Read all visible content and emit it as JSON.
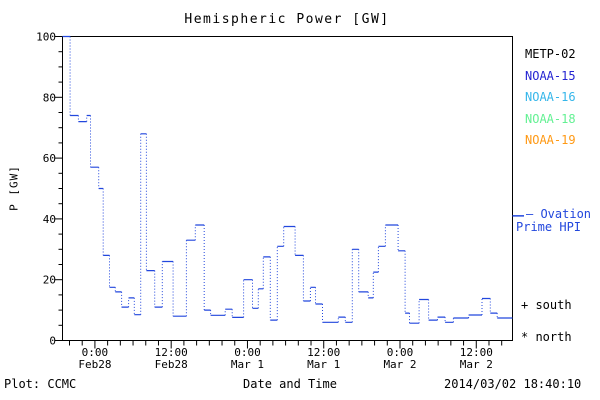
{
  "chart_data": {
    "type": "line",
    "subtype": "step-plot-dotted-verticals",
    "title": "Hemispheric Power [GW]",
    "xlabel": "Date and Time",
    "ylabel": "P [GW]",
    "ylim": [
      0,
      100
    ],
    "y_major_ticks": [
      0,
      20,
      40,
      60,
      80,
      100
    ],
    "y_minor_step_gw": 5,
    "xlim_hours_from_feb28": [
      -5.1,
      65.7
    ],
    "x_minor_step_hours": 2,
    "grid": "off",
    "legend_position": "right-outside",
    "x_ticks": [
      {
        "h": 0,
        "time": "0:00",
        "date": "Feb28"
      },
      {
        "h": 12,
        "time": "12:00",
        "date": "Feb28"
      },
      {
        "h": 24,
        "time": "0:00",
        "date": "Mar 1"
      },
      {
        "h": 36,
        "time": "12:00",
        "date": "Mar 1"
      },
      {
        "h": 48,
        "time": "0:00",
        "date": "Mar 2"
      },
      {
        "h": 60,
        "time": "12:00",
        "date": "Mar 2"
      }
    ],
    "series": [
      {
        "name": "Ovation Prime HPI",
        "color": "#2247dd",
        "line_style": "step, solid horizontals, dotted verticals",
        "points_time_hours_value_gw": [
          [
            -5.1,
            100
          ],
          [
            -3.9,
            74
          ],
          [
            -2.6,
            72
          ],
          [
            -1.3,
            74
          ],
          [
            -0.7,
            57
          ],
          [
            0.6,
            50
          ],
          [
            1.3,
            28
          ],
          [
            2.3,
            17.5
          ],
          [
            3.2,
            16
          ],
          [
            4.2,
            11
          ],
          [
            5.3,
            14
          ],
          [
            6.2,
            8.5
          ],
          [
            7.2,
            68
          ],
          [
            8.1,
            23
          ],
          [
            9.4,
            11
          ],
          [
            10.6,
            26
          ],
          [
            12.3,
            8
          ],
          [
            14.4,
            33
          ],
          [
            15.8,
            38
          ],
          [
            17.2,
            10
          ],
          [
            18.2,
            8.3
          ],
          [
            20.5,
            10.3
          ],
          [
            21.6,
            7.6
          ],
          [
            23.4,
            20
          ],
          [
            24.8,
            10.6
          ],
          [
            25.7,
            17
          ],
          [
            26.5,
            27.5
          ],
          [
            27.6,
            6.7
          ],
          [
            28.7,
            31
          ],
          [
            29.7,
            37.5
          ],
          [
            31.5,
            28
          ],
          [
            32.8,
            13
          ],
          [
            33.9,
            17.5
          ],
          [
            34.7,
            12
          ],
          [
            35.8,
            6
          ],
          [
            38.3,
            7.7
          ],
          [
            39.4,
            6
          ],
          [
            40.5,
            30
          ],
          [
            41.5,
            16
          ],
          [
            43.0,
            14
          ],
          [
            43.8,
            22.5
          ],
          [
            44.6,
            31
          ],
          [
            45.7,
            38
          ],
          [
            47.7,
            29.5
          ],
          [
            48.8,
            9
          ],
          [
            49.5,
            5.7
          ],
          [
            51.0,
            13.5
          ],
          [
            52.5,
            6.7
          ],
          [
            53.9,
            7.7
          ],
          [
            55.1,
            6
          ],
          [
            56.4,
            7.4
          ],
          [
            58.8,
            8.4
          ],
          [
            60.9,
            13.8
          ],
          [
            62.2,
            9
          ],
          [
            63.3,
            7.4
          ]
        ]
      }
    ],
    "legend": [
      {
        "label": "METP-02",
        "color": "#000000"
      },
      {
        "label": "NOAA-15",
        "color": "#2525d2"
      },
      {
        "label": "NOAA-16",
        "color": "#35b6ea"
      },
      {
        "label": "NOAA-18",
        "color": "#63f193"
      },
      {
        "label": "NOAA-19",
        "color": "#ff9914"
      }
    ]
  },
  "annotations": {
    "ovation": {
      "line1": "— Ovation",
      "line2": "Prime HPI",
      "color": "#2247dd",
      "marker_value_gw": 41
    },
    "south_marker": "+ south",
    "north_marker": "* north"
  },
  "footer": {
    "plot_credit": "Plot: CCMC",
    "generated": "2014/03/02 18:40:10"
  }
}
